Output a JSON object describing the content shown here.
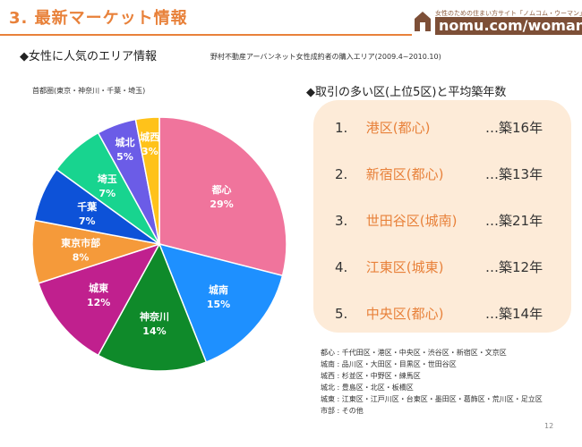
{
  "header": {
    "title": "3. 最新マーケット情報",
    "logo_tagline": "女性のための住まい方サイト「ノムコム・ウーマン」",
    "logo_name": "nomu.com/woman"
  },
  "left_section": {
    "heading": "◆女性に人気のエリア情報",
    "source": "野村不動産アーバンネット女性成約者の購入エリア(2009.4~2010.10)",
    "region": "首都圏(東京・神奈川・千葉・埼玉)"
  },
  "chart_data": {
    "type": "pie",
    "start_angle_deg": 0,
    "direction": "clockwise",
    "slices": [
      {
        "label": "都心",
        "value": 29,
        "color": "#f0749c"
      },
      {
        "label": "城南",
        "value": 15,
        "color": "#1e90ff"
      },
      {
        "label": "神奈川",
        "value": 14,
        "color": "#0f8a2a"
      },
      {
        "label": "城東",
        "value": 12,
        "color": "#c0208e"
      },
      {
        "label": "東京市部",
        "value": 8,
        "color": "#f59a3a"
      },
      {
        "label": "千葉",
        "value": 7,
        "color": "#0d52d8"
      },
      {
        "label": "埼玉",
        "value": 7,
        "color": "#18d48f"
      },
      {
        "label": "城北",
        "value": 5,
        "color": "#6b5ce7"
      },
      {
        "label": "城西",
        "value": 3,
        "color": "#ffc21a"
      }
    ]
  },
  "right_section": {
    "heading": "◆取引の多い区(上位5区)と平均築年数",
    "ranking": [
      {
        "num": "1.",
        "area": "港区(都心)",
        "years": "…築16年"
      },
      {
        "num": "2.",
        "area": "新宿区(都心)",
        "years": "…築13年"
      },
      {
        "num": "3.",
        "area": "世田谷区(城南)",
        "years": "…築21年"
      },
      {
        "num": "4.",
        "area": "江東区(城東)",
        "years": "…築12年"
      },
      {
        "num": "5.",
        "area": "中央区(都心)",
        "years": "…築14年"
      }
    ]
  },
  "legend": [
    "都心 : 千代田区・港区・中央区・渋谷区・新宿区・文京区",
    "城南 : 品川区・大田区・目黒区・世田谷区",
    "城西 : 杉並区・中野区・練馬区",
    "城北 : 豊島区・北区・板橋区",
    "城東 : 江東区・江戸川区・台東区・墨田区・葛飾区・荒川区・足立区",
    "市部 : その他"
  ],
  "page_number": "12",
  "colors": {
    "accent": "#e8813a",
    "logo_brown": "#7d4f37",
    "box_bg": "#fdebd8"
  }
}
